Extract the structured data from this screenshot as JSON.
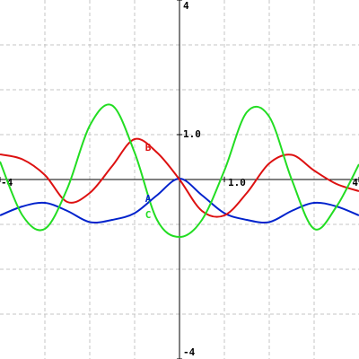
{
  "chart_data": {
    "type": "line",
    "x": [
      -4,
      -3.5,
      -3,
      -2.5,
      -2,
      -1.5,
      -1,
      -0.5,
      0,
      0.5,
      1,
      1.5,
      2,
      2.5,
      3,
      3.5,
      4
    ],
    "series": [
      {
        "name": "A",
        "color": "#0022cc",
        "values": [
          -0.8,
          -0.6,
          -0.52,
          -0.7,
          -0.95,
          -0.9,
          -0.75,
          -0.35,
          0.02,
          -0.35,
          -0.75,
          -0.9,
          -0.95,
          -0.7,
          -0.52,
          -0.6,
          -0.8
        ]
      },
      {
        "name": "B",
        "color": "#dd1111",
        "values": [
          0.56,
          0.45,
          0.1,
          -0.5,
          -0.3,
          0.3,
          0.9,
          0.6,
          0.0,
          -0.7,
          -0.8,
          -0.3,
          0.36,
          0.55,
          0.2,
          -0.1,
          -0.26
        ]
      },
      {
        "name": "C",
        "color": "#22dd22",
        "values": [
          0.4,
          -0.8,
          -1.1,
          -0.2,
          1.2,
          1.65,
          0.6,
          -0.9,
          -1.28,
          -0.9,
          0.2,
          1.5,
          1.4,
          0.0,
          -1.1,
          -0.6,
          0.34
        ]
      }
    ],
    "xlim": [
      -4,
      4
    ],
    "ylim": [
      -4,
      4
    ],
    "xticks": [
      -4,
      {
        "value": 1,
        "label": "1.0"
      },
      4
    ],
    "yticks": [
      -4,
      {
        "value": 1,
        "label": "1.0"
      },
      4
    ]
  }
}
